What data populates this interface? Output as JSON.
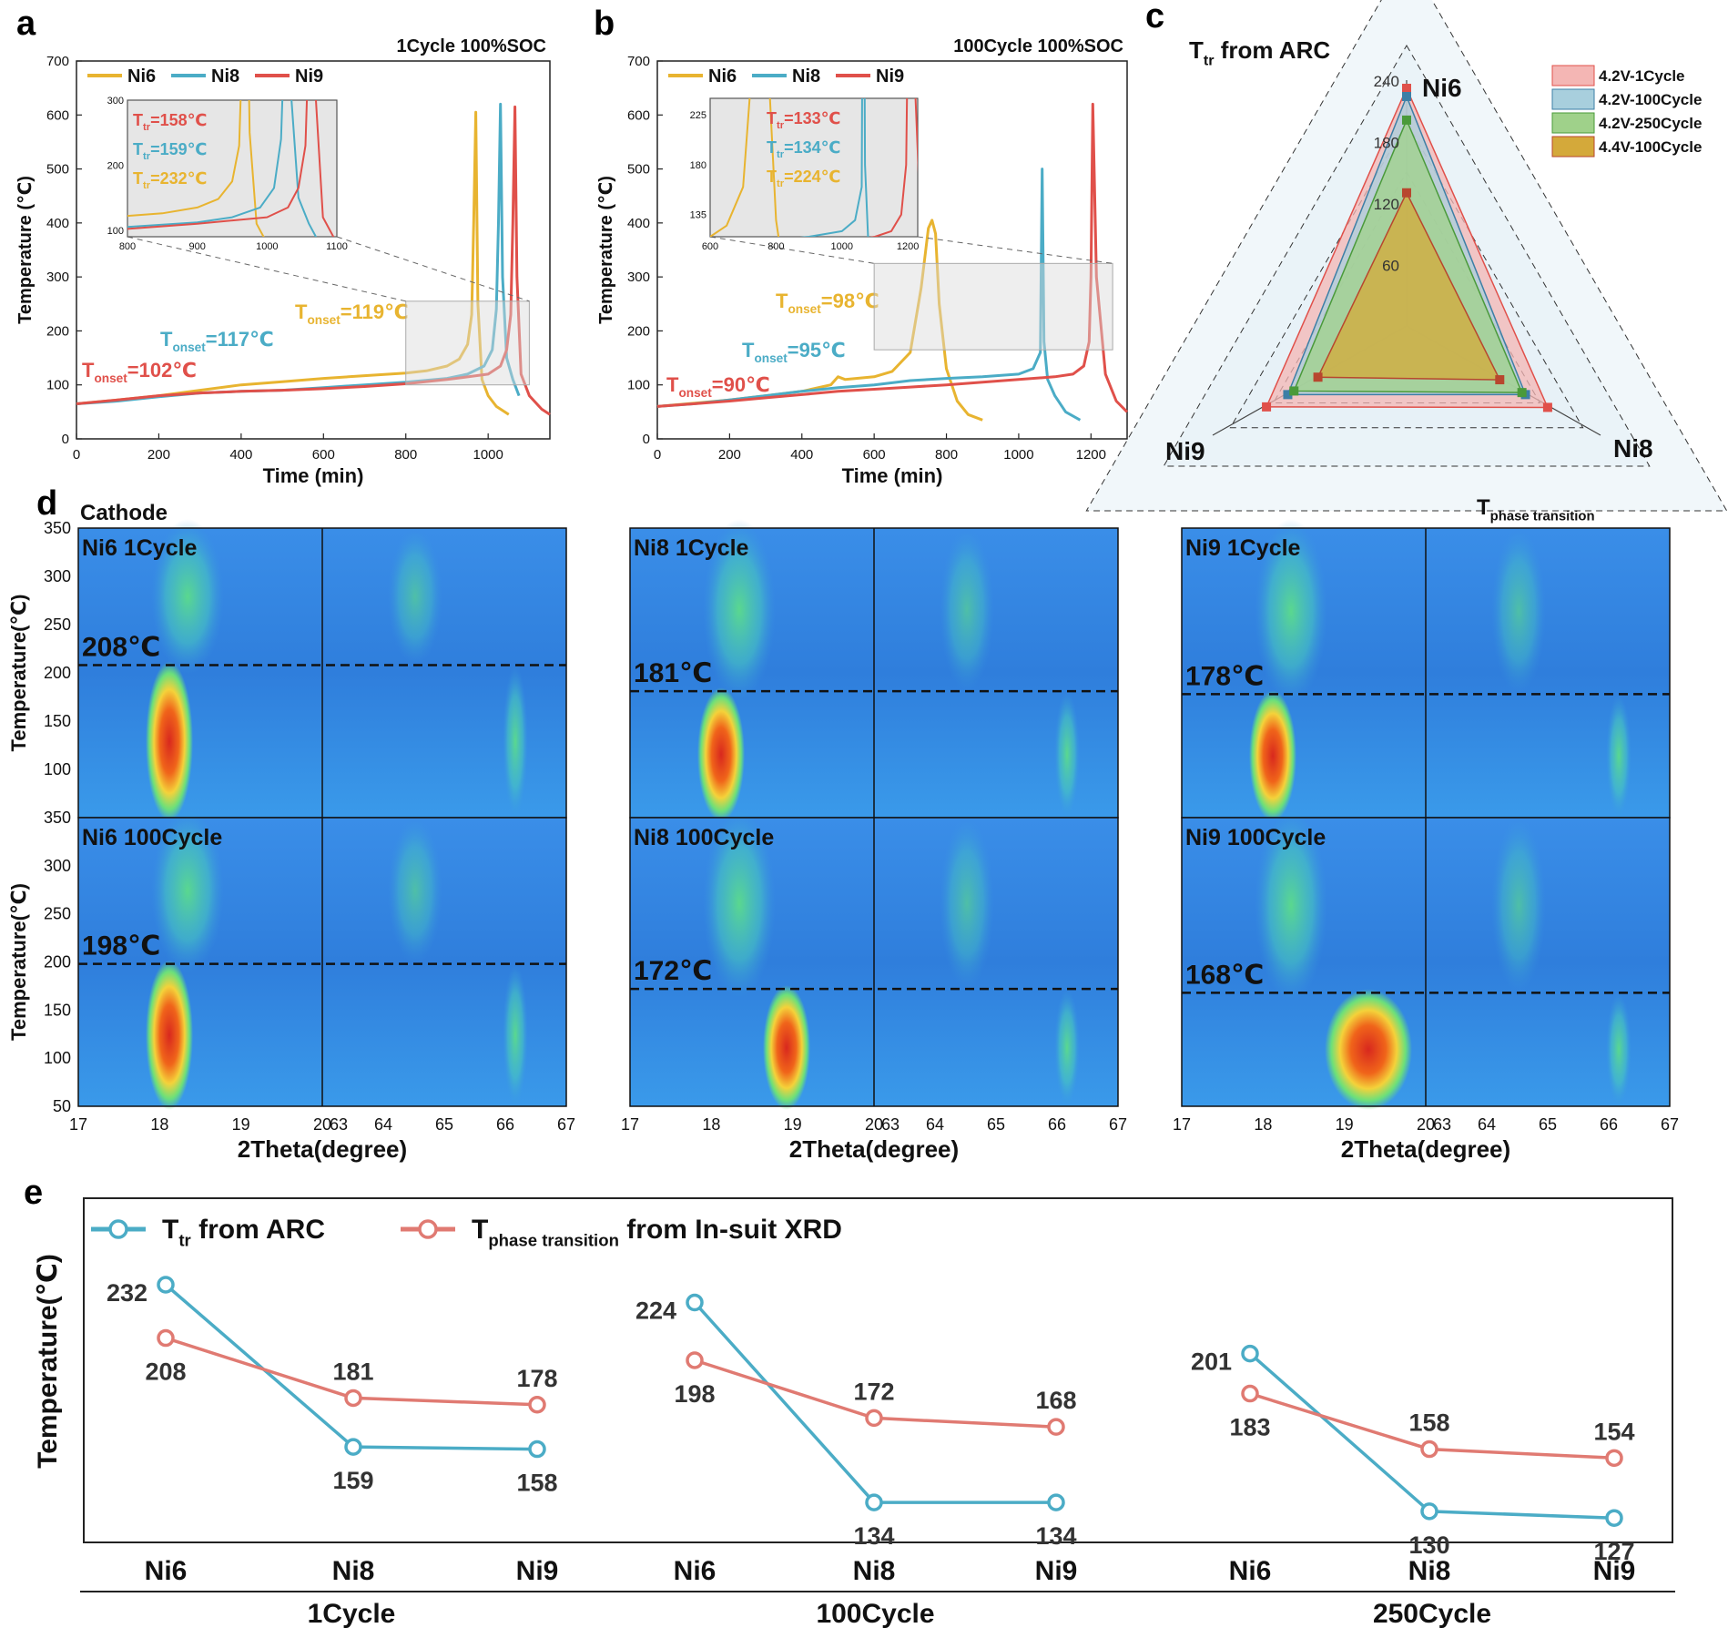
{
  "colors": {
    "ni6": "#E8B430",
    "ni8": "#4BACC6",
    "ni9": "#E0504A",
    "arc": "#4BACC6",
    "xrd": "#E07A72"
  },
  "panel_letters": {
    "a": "a",
    "b": "b",
    "c": "c",
    "d": "d",
    "e": "e"
  },
  "chart_data": [
    {
      "id": "a",
      "type": "line",
      "title": "1Cycle 100%SOC",
      "xlabel": "Time (min)",
      "ylabel": "Temperature (℃)",
      "xlim": [
        0,
        1150
      ],
      "ylim": [
        0,
        700
      ],
      "xticks": [
        "0",
        "200",
        "400",
        "600",
        "800",
        "1000"
      ],
      "yticks": [
        "0",
        "100",
        "200",
        "300",
        "400",
        "500",
        "600",
        "700"
      ],
      "legend": [
        "Ni6",
        "Ni8",
        "Ni9"
      ],
      "series": [
        {
          "name": "Ni6",
          "x": [
            0,
            100,
            200,
            300,
            400,
            500,
            600,
            700,
            800,
            850,
            900,
            930,
            950,
            960,
            965,
            970,
            975,
            985,
            1000,
            1020,
            1050
          ],
          "y": [
            65,
            72,
            80,
            90,
            100,
            106,
            112,
            117,
            122,
            126,
            135,
            148,
            175,
            230,
            400,
            605,
            250,
            110,
            80,
            60,
            45
          ]
        },
        {
          "name": "Ni8",
          "x": [
            0,
            100,
            200,
            300,
            400,
            500,
            600,
            700,
            800,
            900,
            950,
            990,
            1010,
            1020,
            1025,
            1030,
            1035,
            1045,
            1060,
            1075
          ],
          "y": [
            65,
            70,
            78,
            85,
            88,
            90,
            95,
            100,
            105,
            112,
            120,
            135,
            165,
            240,
            400,
            620,
            300,
            150,
            110,
            80
          ]
        },
        {
          "name": "Ni9",
          "x": [
            0,
            100,
            200,
            300,
            400,
            500,
            600,
            700,
            800,
            900,
            1000,
            1030,
            1045,
            1055,
            1060,
            1065,
            1070,
            1080,
            1100,
            1130,
            1150
          ],
          "y": [
            65,
            72,
            80,
            85,
            88,
            90,
            93,
            97,
            102,
            110,
            120,
            135,
            165,
            230,
            400,
            615,
            300,
            120,
            80,
            55,
            45
          ]
        }
      ],
      "annotations": [
        {
          "label": "T",
          "sub": "onset",
          "value": "=102℃",
          "series": "Ni9"
        },
        {
          "label": "T",
          "sub": "onset",
          "value": "=117℃",
          "series": "Ni8"
        },
        {
          "label": "T",
          "sub": "onset",
          "value": "=119℃",
          "series": "Ni6"
        }
      ],
      "inset": {
        "xlim": [
          800,
          1100
        ],
        "ylim": [
          90,
          300
        ],
        "xticks": [
          "800",
          "900",
          "1000",
          "1100"
        ],
        "yticks": [
          "100",
          "200",
          "300"
        ],
        "labels": [
          {
            "label": "T",
            "sub": "tr",
            "value": "=158℃",
            "series": "Ni9"
          },
          {
            "label": "T",
            "sub": "tr",
            "value": "=159℃",
            "series": "Ni8"
          },
          {
            "label": "T",
            "sub": "tr",
            "value": "=232℃",
            "series": "Ni6"
          }
        ]
      }
    },
    {
      "id": "b",
      "type": "line",
      "title": "100Cycle 100%SOC",
      "xlabel": "Time (min)",
      "ylabel": "Temperature (℃)",
      "xlim": [
        0,
        1300
      ],
      "ylim": [
        0,
        700
      ],
      "xticks": [
        "0",
        "200",
        "400",
        "600",
        "800",
        "1000",
        "1200"
      ],
      "yticks": [
        "0",
        "100",
        "200",
        "300",
        "400",
        "500",
        "600",
        "700"
      ],
      "legend": [
        "Ni6",
        "Ni8",
        "Ni9"
      ],
      "series": [
        {
          "name": "Ni6",
          "x": [
            0,
            100,
            200,
            300,
            400,
            480,
            500,
            520,
            600,
            650,
            700,
            730,
            750,
            760,
            770,
            780,
            800,
            830,
            860,
            900
          ],
          "y": [
            60,
            66,
            72,
            80,
            88,
            100,
            115,
            110,
            115,
            125,
            160,
            280,
            390,
            405,
            380,
            250,
            130,
            70,
            45,
            35
          ]
        },
        {
          "name": "Ni8",
          "x": [
            0,
            100,
            200,
            300,
            400,
            500,
            600,
            700,
            800,
            900,
            1000,
            1040,
            1060,
            1065,
            1070,
            1080,
            1100,
            1130,
            1170
          ],
          "y": [
            60,
            65,
            72,
            80,
            88,
            95,
            100,
            108,
            112,
            115,
            120,
            130,
            160,
            500,
            180,
            110,
            80,
            50,
            35
          ]
        },
        {
          "name": "Ni9",
          "x": [
            0,
            100,
            200,
            300,
            400,
            500,
            600,
            700,
            800,
            900,
            1000,
            1100,
            1150,
            1180,
            1195,
            1200,
            1205,
            1215,
            1240,
            1270,
            1300
          ],
          "y": [
            60,
            65,
            70,
            76,
            82,
            88,
            92,
            96,
            100,
            105,
            110,
            115,
            120,
            135,
            180,
            300,
            620,
            300,
            120,
            70,
            50
          ]
        }
      ],
      "annotations": [
        {
          "label": "T",
          "sub": "onset",
          "value": "=90℃",
          "series": "Ni9"
        },
        {
          "label": "T",
          "sub": "onset",
          "value": "=95℃",
          "series": "Ni8"
        },
        {
          "label": "T",
          "sub": "onset",
          "value": "=98℃",
          "series": "Ni6"
        }
      ],
      "inset": {
        "xlim": [
          600,
          1230
        ],
        "ylim": [
          115,
          240
        ],
        "xticks": [
          "600",
          "800",
          "1000",
          "1200"
        ],
        "yticks": [
          "135",
          "180",
          "225"
        ],
        "labels": [
          {
            "label": "T",
            "sub": "tr",
            "value": "=133℃",
            "series": "Ni9"
          },
          {
            "label": "T",
            "sub": "tr",
            "value": "=134℃",
            "series": "Ni8"
          },
          {
            "label": "T",
            "sub": "tr",
            "value": "=224℃",
            "series": "Ni6"
          }
        ]
      }
    },
    {
      "id": "c",
      "type": "radar",
      "title_main": "T",
      "title_sub": "tr",
      "title_rest": " from ARC",
      "axes": [
        "Ni6",
        "Ni8",
        "Ni9"
      ],
      "rmax": 240,
      "rticks": [
        "60",
        "120",
        "180",
        "240"
      ],
      "legend": [
        "4.2V-1Cycle",
        "4.2V-100Cycle",
        "4.2V-250Cycle",
        "4.4V-100Cycle"
      ],
      "series": [
        {
          "name": "4.2V-1Cycle",
          "values": [
            232,
            159,
            158
          ],
          "fill": "#F4B6B4",
          "line": "#E0504A"
        },
        {
          "name": "4.2V-100Cycle",
          "values": [
            224,
            134,
            134
          ],
          "fill": "#A8CFDD",
          "line": "#3D7FA6"
        },
        {
          "name": "4.2V-250Cycle",
          "values": [
            201,
            130,
            127
          ],
          "fill": "#9FD18A",
          "line": "#4A9A3A"
        },
        {
          "name": "4.4V-100Cycle",
          "values": [
            130,
            105,
            100
          ],
          "fill": "#D4A93A",
          "line": "#B8462E"
        }
      ]
    },
    {
      "id": "e",
      "type": "line",
      "ylabel": "Temperature(℃)",
      "groups": [
        "1Cycle",
        "100Cycle",
        "250Cycle"
      ],
      "categories": [
        "Ni6",
        "Ni8",
        "Ni9"
      ],
      "legend": [
        {
          "main": "T",
          "sub": "tr",
          "rest": " from ARC"
        },
        {
          "main": "T",
          "sub": "phase transition",
          "rest": " from In-suit XRD"
        }
      ],
      "series": [
        {
          "name": "ARC",
          "values": [
            [
              232,
              159,
              158
            ],
            [
              224,
              134,
              134
            ],
            [
              201,
              130,
              127
            ]
          ]
        },
        {
          "name": "XRD",
          "values": [
            [
              208,
              181,
              178
            ],
            [
              198,
              172,
              168
            ],
            [
              183,
              158,
              154
            ]
          ]
        }
      ]
    }
  ],
  "panel_d": {
    "cathode_label": "Cathode",
    "phase_label_main": "T",
    "phase_label_sub": "phase transition",
    "ylabel": "Temperature(℃)",
    "xlabel": "2Theta(degree)",
    "yticks": [
      "350",
      "300",
      "250",
      "200",
      "150",
      "100"
    ],
    "yticks_bottom": [
      "350",
      "300",
      "250",
      "200",
      "150",
      "100",
      "50"
    ],
    "xticks_left": [
      "17",
      "18",
      "19"
    ],
    "xticks_mid": "20",
    "xticks_right": [
      "63",
      "64",
      "65",
      "66",
      "67"
    ],
    "columns": [
      {
        "top_label": "Ni6 1Cycle",
        "top_temp": "208℃",
        "top_temp_value": 208,
        "bottom_label": "Ni6 100Cycle",
        "bottom_temp": "198℃",
        "bottom_temp_value": 198
      },
      {
        "top_label": "Ni8 1Cycle",
        "top_temp": "181℃",
        "top_temp_value": 181,
        "bottom_label": "Ni8 100Cycle",
        "bottom_temp": "172℃",
        "bottom_temp_value": 172
      },
      {
        "top_label": "Ni9 1Cycle",
        "top_temp": "178℃",
        "top_temp_value": 178,
        "bottom_label": "Ni9 100Cycle",
        "bottom_temp": "168℃",
        "bottom_temp_value": 168
      }
    ]
  }
}
